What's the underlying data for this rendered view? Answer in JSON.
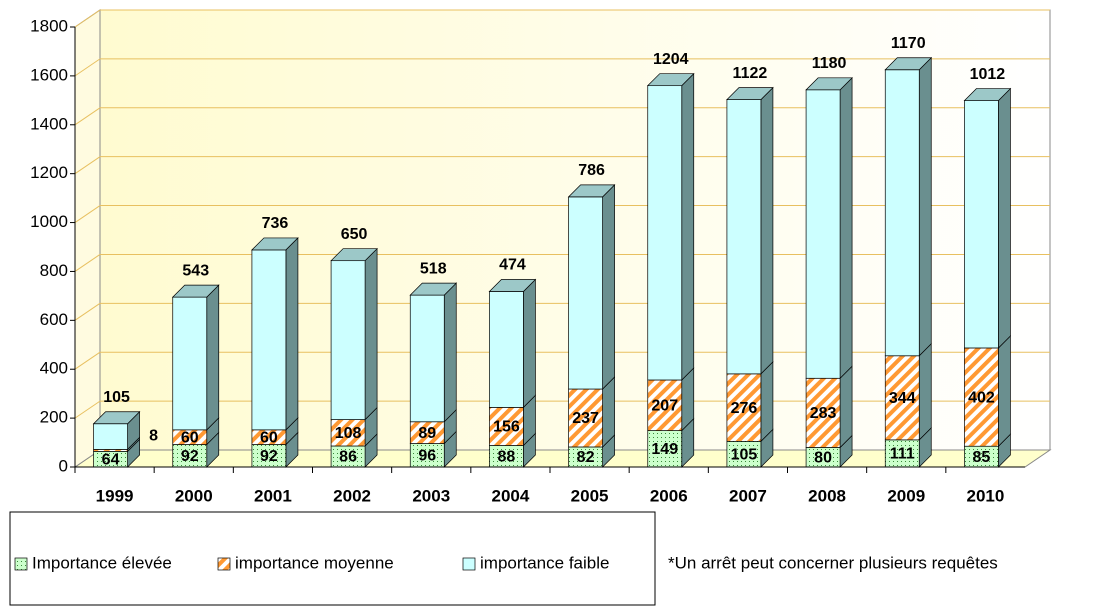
{
  "chart_data": {
    "type": "bar3d_stacked",
    "categories": [
      "1999",
      "2000",
      "2001",
      "2002",
      "2003",
      "2004",
      "2005",
      "2006",
      "2007",
      "2008",
      "2009",
      "2010"
    ],
    "series": [
      {
        "name": "Importance élevée",
        "color": "#ccffcc",
        "values": [
          64,
          92,
          92,
          86,
          96,
          88,
          82,
          149,
          105,
          80,
          111,
          85
        ]
      },
      {
        "name": "importance moyenne",
        "color": "#ff9933",
        "values": [
          8,
          60,
          60,
          108,
          89,
          156,
          237,
          207,
          276,
          283,
          344,
          402
        ]
      },
      {
        "name": "importance faible",
        "color": "#ccffff",
        "values": [
          105,
          543,
          736,
          650,
          518,
          474,
          786,
          1204,
          1122,
          1180,
          1170,
          1012
        ]
      }
    ],
    "ylim": [
      0,
      1800
    ],
    "yticks": [
      0,
      200,
      400,
      600,
      800,
      1000,
      1200,
      1400,
      1600,
      1800
    ],
    "grid": true,
    "note": "*Un arrêt peut concerner plusieurs requêtes"
  }
}
